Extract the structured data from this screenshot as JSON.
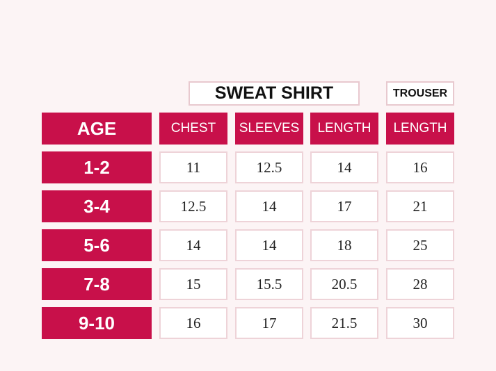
{
  "groups": [
    "SWEAT SHIRT",
    "TROUSER"
  ],
  "table": {
    "header": [
      "AGE",
      "CHEST",
      "SLEEVES",
      "LENGTH",
      "LENGTH"
    ],
    "rows": [
      [
        "1-2",
        "11",
        "12.5",
        "14",
        "16"
      ],
      [
        "3-4",
        "12.5",
        "14",
        "17",
        "21"
      ],
      [
        "5-6",
        "14",
        "14",
        "18",
        "25"
      ],
      [
        "7-8",
        "15",
        "15.5",
        "20.5",
        "28"
      ],
      [
        "9-10",
        "16",
        "17",
        "21.5",
        "30"
      ]
    ]
  }
}
